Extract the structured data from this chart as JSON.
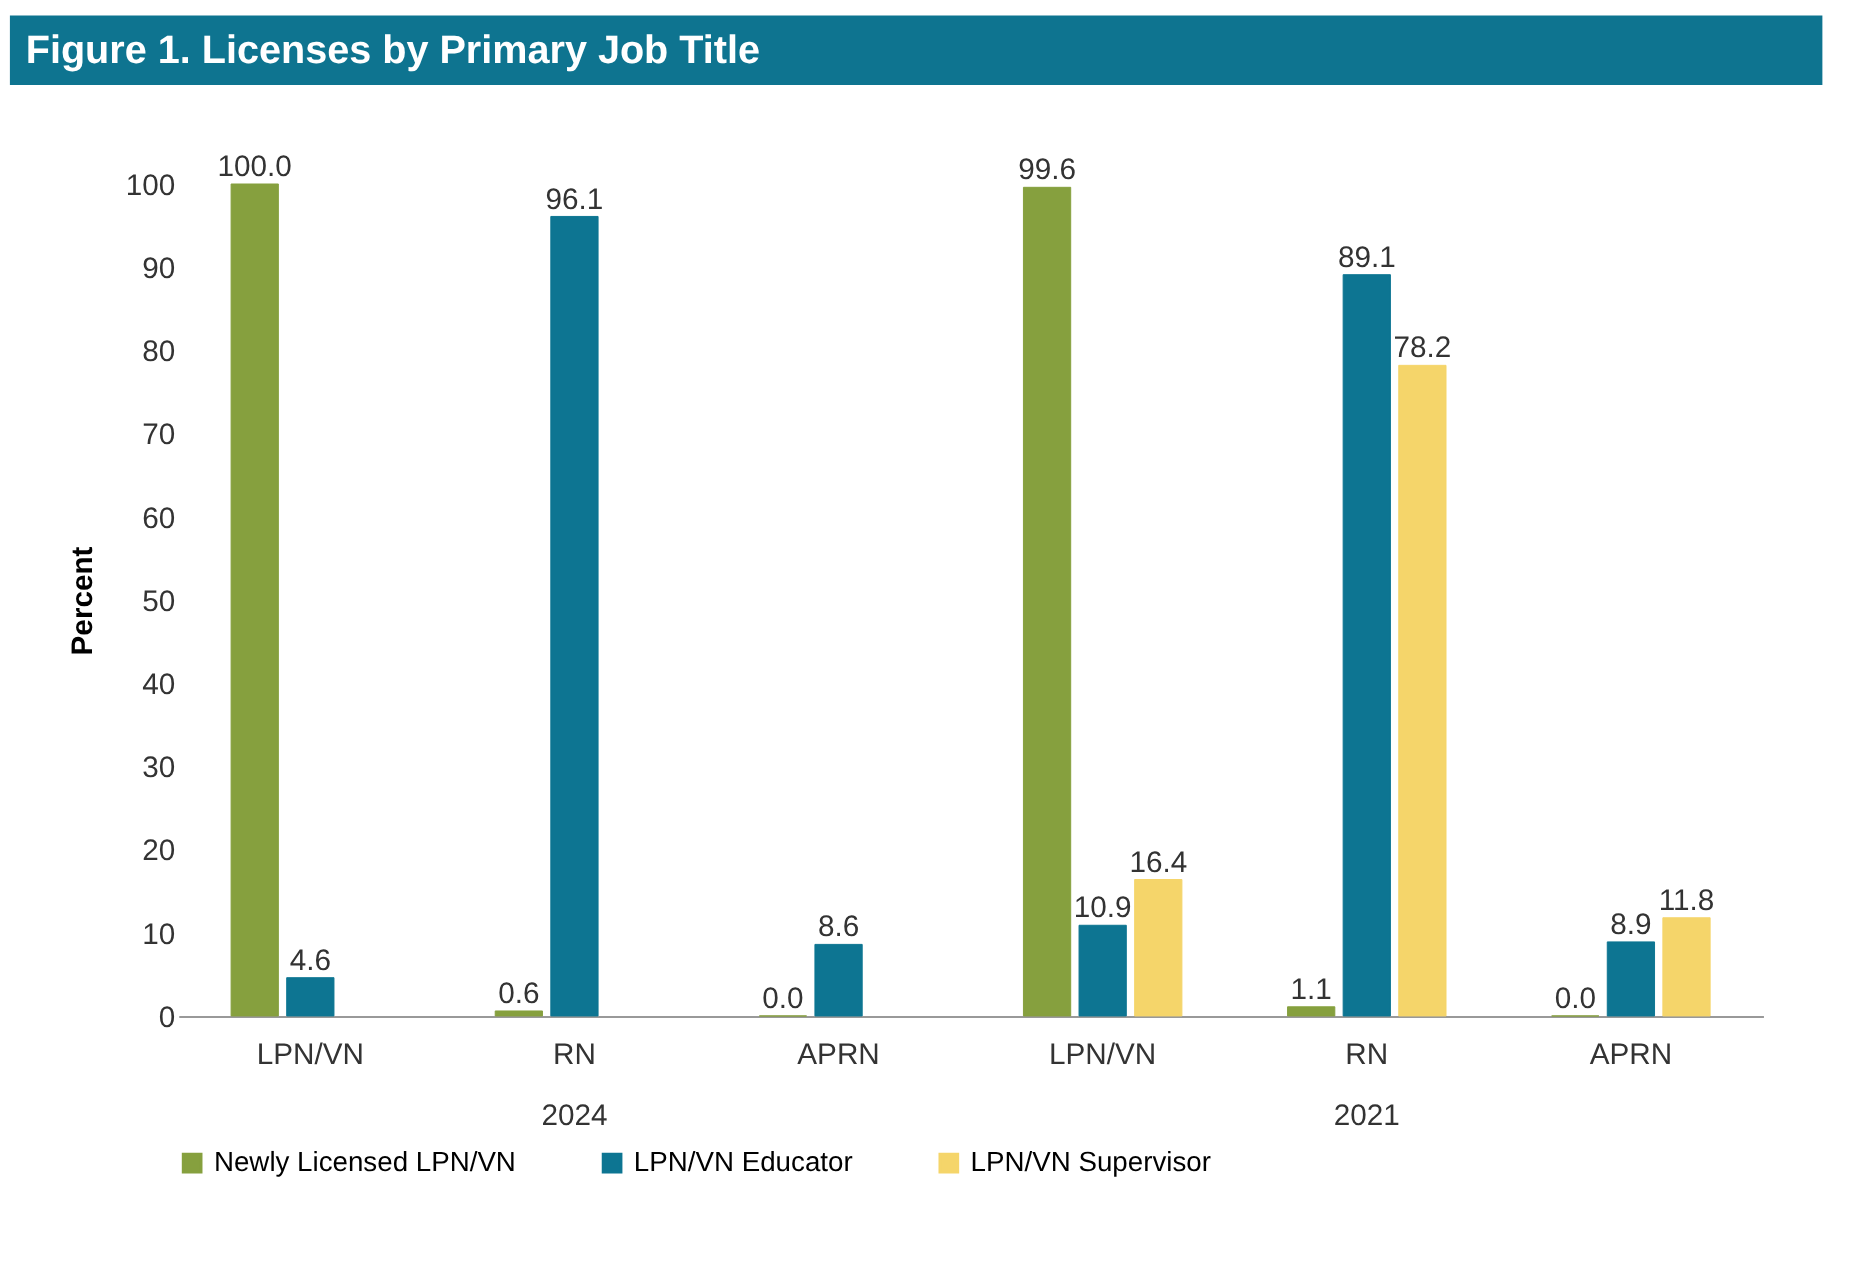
{
  "chart_data": {
    "type": "bar",
    "title": "Figure 1. Licenses by Primary Job Title",
    "ylabel": "Percent",
    "categories": [
      "LPN/VN",
      "RN",
      "APRN",
      "LPN/VN",
      "RN",
      "APRN"
    ],
    "annotations": [
      "2024",
      "2021"
    ],
    "series": [
      {
        "name": "Newly Licensed LPN/VN",
        "color": "#86a03e",
        "values": [
          100.0,
          0.6,
          0.0,
          99.6,
          1.1,
          0.0
        ],
        "value_labels": [
          "100.0",
          "0.6",
          "0.0",
          "99.6",
          "1.1",
          "0.0"
        ]
      },
      {
        "name": "LPN/VN Educator",
        "color": "#0d7592",
        "values": [
          4.6,
          96.1,
          8.6,
          10.9,
          89.1,
          8.9
        ],
        "value_labels": [
          "4.6",
          "96.1",
          "8.6",
          "10.9",
          "89.1",
          "8.9"
        ]
      },
      {
        "name": "LPN/VN Supervisor",
        "color": "#f5d56a",
        "values": [
          null,
          null,
          null,
          16.4,
          78.2,
          11.8
        ],
        "value_labels": [
          null,
          null,
          null,
          "16.4",
          "78.2",
          "11.8"
        ]
      }
    ],
    "ylim": [
      0,
      100
    ],
    "yticks": [
      0,
      10,
      20,
      30,
      40,
      50,
      60,
      70,
      80,
      90,
      100
    ],
    "grid": false,
    "legend": "bottom"
  }
}
